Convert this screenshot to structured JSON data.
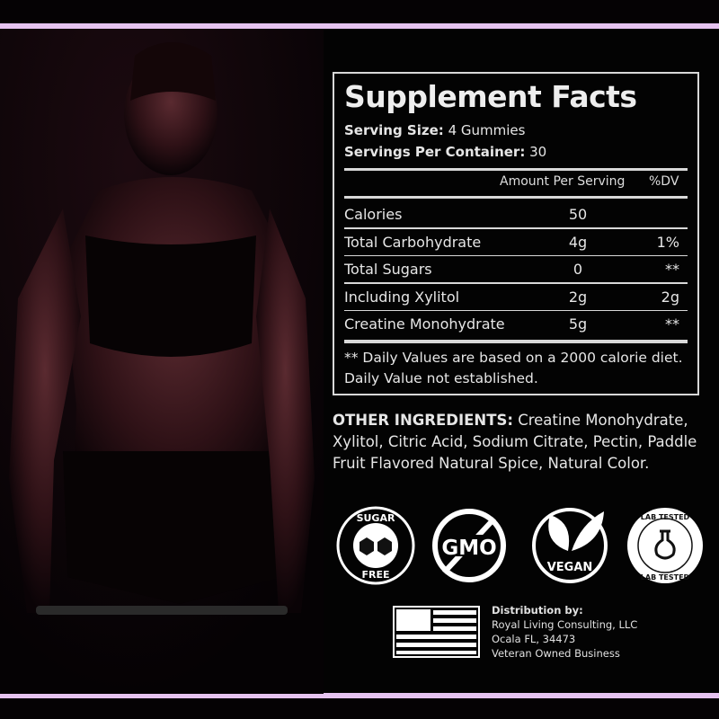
{
  "facts": {
    "title": "Supplement Facts",
    "serving_size_label": "Serving Size:",
    "serving_size_value": "4 Gummies",
    "servings_label": "Servings Per Container:",
    "servings_value": "30",
    "col_amount": "Amount Per Serving",
    "col_dv": "%DV",
    "rows": [
      {
        "name": "Calories",
        "amount": "50",
        "dv": ""
      },
      {
        "name": "Total Carbohydrate",
        "amount": "4g",
        "dv": "1%"
      },
      {
        "name": "Total Sugars",
        "amount": "0",
        "dv": "**"
      },
      {
        "name": "Including Xylitol",
        "amount": "2g",
        "dv": "2g"
      },
      {
        "name": "Creatine Monohydrate",
        "amount": "5g",
        "dv": "**"
      }
    ],
    "footnote_1": "** Daily Values are based on a 2000 calorie diet.",
    "footnote_2": "Daily Value not established."
  },
  "other_ingredients": {
    "label": "OTHER INGREDIENTS:",
    "text": "Creatine Monohydrate, Xylitol, Citric Acid, Sodium Citrate, Pectin, Paddle Fruit Flavored Natural Spice, Natural Color."
  },
  "badges": {
    "sugar_free": {
      "top": "SUGAR",
      "bottom": "FREE",
      "icon": "sugar-cubes-icon"
    },
    "gmo": {
      "text": "GMO",
      "icon": "no-gmo-icon"
    },
    "vegan": {
      "text": "VEGAN",
      "icon": "leaves-icon"
    },
    "lab_tested": {
      "top": "LAB TESTED",
      "bottom": "LAB TESTED",
      "icon": "flask-icon"
    }
  },
  "distribution": {
    "label": "Distribution by:",
    "company": "Royal Living Consulting, LLC",
    "address": "Ocala FL, 34473",
    "note": "Veteran Owned Business",
    "flag_icon": "us-flag-icon"
  },
  "colors": {
    "accent_bar": "#e6c3f0",
    "background": "#050204",
    "text": "#e8e8e8"
  }
}
